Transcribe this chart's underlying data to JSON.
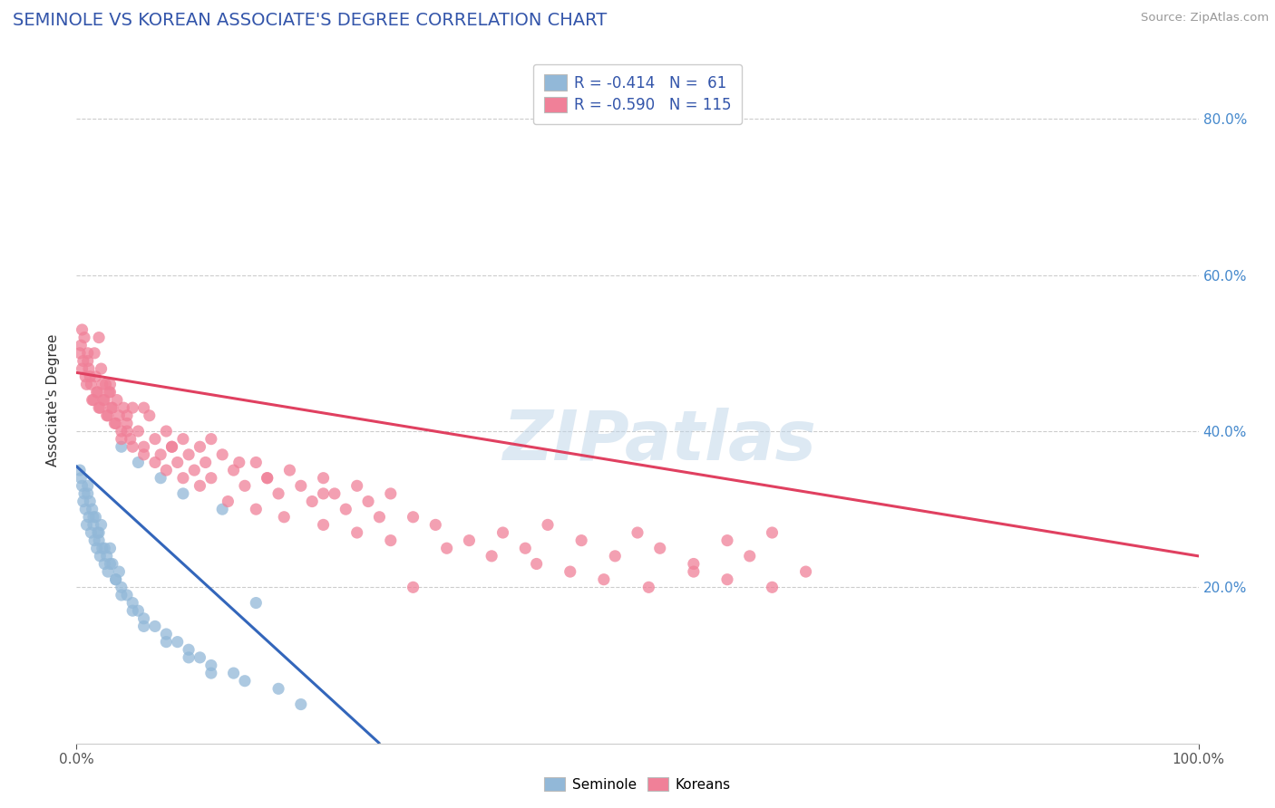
{
  "title": "SEMINOLE VS KOREAN ASSOCIATE'S DEGREE CORRELATION CHART",
  "source": "Source: ZipAtlas.com",
  "ylabel": "Associate's Degree",
  "legend_blue_label": "Seminole",
  "legend_pink_label": "Koreans",
  "R_blue": -0.414,
  "N_blue": 61,
  "R_pink": -0.59,
  "N_pink": 115,
  "blue_color": "#92B8D8",
  "pink_color": "#F08098",
  "trend_blue": "#3366BB",
  "trend_pink": "#E04060",
  "trend_dashed_color": "#AAAAAA",
  "watermark": "ZIPatlas",
  "xlim": [
    0.0,
    100.0
  ],
  "ylim": [
    0.0,
    88.0
  ],
  "yticks": [
    20.0,
    40.0,
    60.0,
    80.0
  ],
  "bg_color": "#FFFFFF",
  "grid_color": "#CCCCCC",
  "blue_trend_start_x": 0.0,
  "blue_trend_start_y": 35.5,
  "blue_trend_end_solid_x": 27.0,
  "blue_trend_end_solid_y": 0.0,
  "blue_trend_end_dashed_x": 50.0,
  "pink_trend_start_x": 0.0,
  "pink_trend_start_y": 47.5,
  "pink_trend_end_x": 100.0,
  "pink_trend_end_y": 24.0,
  "seminole_x": [
    0.3,
    0.5,
    0.7,
    0.8,
    0.9,
    1.0,
    1.1,
    1.2,
    1.3,
    1.4,
    1.5,
    1.6,
    1.7,
    1.8,
    1.9,
    2.0,
    2.1,
    2.2,
    2.3,
    2.5,
    2.7,
    2.8,
    3.0,
    3.2,
    3.5,
    3.8,
    4.0,
    4.5,
    5.0,
    5.5,
    6.0,
    7.0,
    8.0,
    9.0,
    10.0,
    11.0,
    12.0,
    14.0,
    15.0,
    16.0,
    18.0,
    0.4,
    0.6,
    1.0,
    1.5,
    2.0,
    2.5,
    3.0,
    3.5,
    4.0,
    5.0,
    6.0,
    8.0,
    10.0,
    12.0,
    4.0,
    5.5,
    7.5,
    9.5,
    13.0,
    20.0
  ],
  "seminole_y": [
    35.0,
    33.0,
    32.0,
    30.0,
    28.0,
    32.0,
    29.0,
    31.0,
    27.0,
    30.0,
    28.0,
    26.0,
    29.0,
    25.0,
    27.0,
    26.0,
    24.0,
    28.0,
    25.0,
    23.0,
    24.0,
    22.0,
    25.0,
    23.0,
    21.0,
    22.0,
    20.0,
    19.0,
    18.0,
    17.0,
    16.0,
    15.0,
    14.0,
    13.0,
    12.0,
    11.0,
    10.0,
    9.0,
    8.0,
    18.0,
    7.0,
    34.0,
    31.0,
    33.0,
    29.0,
    27.0,
    25.0,
    23.0,
    21.0,
    19.0,
    17.0,
    15.0,
    13.0,
    11.0,
    9.0,
    38.0,
    36.0,
    34.0,
    32.0,
    30.0,
    5.0
  ],
  "korean_x": [
    0.3,
    0.5,
    0.7,
    0.9,
    1.0,
    1.2,
    1.4,
    1.6,
    1.8,
    2.0,
    2.2,
    2.4,
    2.6,
    2.8,
    3.0,
    3.2,
    3.4,
    3.6,
    3.8,
    4.0,
    4.2,
    4.5,
    4.8,
    5.0,
    5.5,
    6.0,
    6.5,
    7.0,
    7.5,
    8.0,
    8.5,
    9.0,
    9.5,
    10.0,
    10.5,
    11.0,
    11.5,
    12.0,
    13.0,
    14.0,
    15.0,
    16.0,
    17.0,
    18.0,
    19.0,
    20.0,
    21.0,
    22.0,
    23.0,
    24.0,
    25.0,
    26.0,
    27.0,
    28.0,
    30.0,
    32.0,
    35.0,
    38.0,
    40.0,
    42.0,
    45.0,
    48.0,
    50.0,
    52.0,
    55.0,
    58.0,
    60.0,
    62.0,
    65.0,
    0.4,
    0.6,
    0.8,
    1.1,
    1.3,
    1.5,
    1.7,
    1.9,
    2.1,
    2.3,
    2.5,
    2.7,
    2.9,
    3.1,
    3.5,
    4.0,
    4.5,
    5.0,
    6.0,
    7.0,
    8.0,
    9.5,
    11.0,
    13.5,
    16.0,
    18.5,
    22.0,
    25.0,
    28.0,
    33.0,
    37.0,
    41.0,
    44.0,
    47.0,
    51.0,
    55.0,
    58.0,
    62.0,
    0.5,
    1.0,
    2.0,
    3.0,
    4.5,
    6.0,
    8.5,
    12.0,
    14.5,
    17.0,
    22.0,
    30.0
  ],
  "korean_y": [
    50.0,
    48.0,
    52.0,
    46.0,
    49.0,
    47.0,
    44.0,
    50.0,
    45.0,
    43.0,
    48.0,
    44.0,
    46.0,
    42.0,
    45.0,
    43.0,
    41.0,
    44.0,
    42.0,
    40.0,
    43.0,
    41.0,
    39.0,
    43.0,
    40.0,
    38.0,
    42.0,
    39.0,
    37.0,
    40.0,
    38.0,
    36.0,
    39.0,
    37.0,
    35.0,
    38.0,
    36.0,
    34.0,
    37.0,
    35.0,
    33.0,
    36.0,
    34.0,
    32.0,
    35.0,
    33.0,
    31.0,
    34.0,
    32.0,
    30.0,
    33.0,
    31.0,
    29.0,
    32.0,
    29.0,
    28.0,
    26.0,
    27.0,
    25.0,
    28.0,
    26.0,
    24.0,
    27.0,
    25.0,
    23.0,
    26.0,
    24.0,
    27.0,
    22.0,
    51.0,
    49.0,
    47.0,
    48.0,
    46.0,
    44.0,
    47.0,
    45.0,
    43.0,
    46.0,
    44.0,
    42.0,
    45.0,
    43.0,
    41.0,
    39.0,
    40.0,
    38.0,
    37.0,
    36.0,
    35.0,
    34.0,
    33.0,
    31.0,
    30.0,
    29.0,
    28.0,
    27.0,
    26.0,
    25.0,
    24.0,
    23.0,
    22.0,
    21.0,
    20.0,
    22.0,
    21.0,
    20.0,
    53.0,
    50.0,
    52.0,
    46.0,
    42.0,
    43.0,
    38.0,
    39.0,
    36.0,
    34.0,
    32.0,
    20.0
  ]
}
